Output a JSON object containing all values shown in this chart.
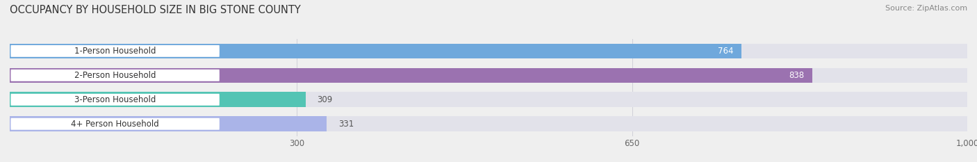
{
  "title": "OCCUPANCY BY HOUSEHOLD SIZE IN BIG STONE COUNTY",
  "source": "Source: ZipAtlas.com",
  "categories": [
    "1-Person Household",
    "2-Person Household",
    "3-Person Household",
    "4+ Person Household"
  ],
  "values": [
    764,
    838,
    309,
    331
  ],
  "bar_colors": [
    "#6fa8dc",
    "#9b72b0",
    "#53c4b4",
    "#aab4e8"
  ],
  "background_color": "#efefef",
  "bar_bg_color": "#e2e2ea",
  "label_bg_color": "#ffffff",
  "xlim": [
    0,
    1000
  ],
  "xticks": [
    300,
    650,
    1000
  ],
  "bar_height": 0.62,
  "figsize": [
    14.06,
    2.33
  ],
  "dpi": 100
}
